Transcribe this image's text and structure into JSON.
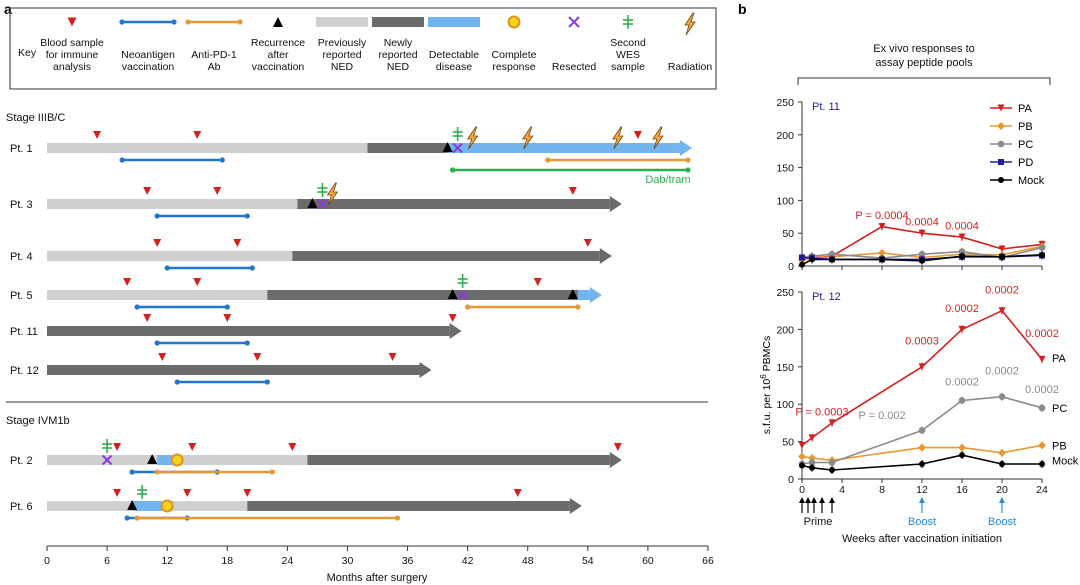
{
  "panel_a": {
    "label": "a",
    "key_title": "Key",
    "key_items": [
      {
        "name": "blood",
        "label": [
          "Blood sample",
          "for immune",
          "analysis"
        ]
      },
      {
        "name": "vaccine",
        "label": [
          "Neoantigen",
          "vaccination"
        ]
      },
      {
        "name": "antipd1",
        "label": [
          "Anti-PD-1",
          "Ab"
        ]
      },
      {
        "name": "recurrence",
        "label": [
          "Recurrence",
          "after",
          "vaccination"
        ]
      },
      {
        "name": "prev_ned",
        "label": [
          "Previously",
          "reported",
          "NED"
        ]
      },
      {
        "name": "new_ned",
        "label": [
          "Newly",
          "reported",
          "NED"
        ]
      },
      {
        "name": "disease",
        "label": [
          "Detectable",
          "disease"
        ]
      },
      {
        "name": "complete",
        "label": [
          "Complete",
          "response"
        ]
      },
      {
        "name": "resected",
        "label": [
          "Resected"
        ]
      },
      {
        "name": "wes",
        "label": [
          "Second",
          "WES",
          "sample"
        ]
      },
      {
        "name": "radiation",
        "label": [
          "Radiation"
        ]
      }
    ],
    "stage1_label": "Stage IIIB/C",
    "stage2_label": "Stage IVM1b",
    "dab_label": "Dab/tram",
    "xlabel": "Months after surgery",
    "x_ticks": [
      0,
      6,
      12,
      18,
      24,
      30,
      36,
      42,
      48,
      54,
      60,
      66
    ],
    "patients": [
      {
        "id": "Pt. 1",
        "segs": [
          [
            0,
            32,
            "light"
          ],
          [
            32,
            40,
            "dark"
          ],
          [
            40,
            64,
            "blue"
          ]
        ],
        "blood": [
          5,
          15,
          59
        ],
        "vac": [
          7.5,
          17.5
        ],
        "rec": [
          40
        ],
        "res": [
          41
        ],
        "wes": [
          41
        ],
        "rad": [
          42.5,
          48,
          57,
          61
        ],
        "pd1": [
          [
            50,
            64
          ]
        ],
        "dab": [
          40.5,
          64
        ]
      },
      {
        "id": "Pt. 3",
        "segs": [
          [
            0,
            25,
            "light"
          ],
          [
            25,
            57,
            "dark"
          ]
        ],
        "blood": [
          10,
          17,
          52.5
        ],
        "vac": [
          11,
          20
        ],
        "rec": [
          26.5
        ],
        "res": [
          27.5
        ],
        "wes": [
          27.5
        ],
        "rad": [
          28.5
        ]
      },
      {
        "id": "Pt. 4",
        "segs": [
          [
            0,
            24.5,
            "light"
          ],
          [
            24.5,
            56,
            "dark"
          ]
        ],
        "blood": [
          11,
          19,
          54
        ],
        "vac": [
          12,
          20.5
        ]
      },
      {
        "id": "Pt. 5",
        "segs": [
          [
            0,
            22,
            "light"
          ],
          [
            22,
            53,
            "dark"
          ],
          [
            53,
            55,
            "blue"
          ]
        ],
        "blood": [
          8,
          15,
          49
        ],
        "vac": [
          9,
          18
        ],
        "rec": [
          40.5,
          52.5
        ],
        "res": [
          41.5
        ],
        "wes": [
          41.5
        ],
        "pd1": [
          [
            42,
            53
          ]
        ]
      },
      {
        "id": "Pt. 11",
        "segs": [
          [
            0,
            41,
            "dark"
          ]
        ],
        "blood": [
          10,
          18,
          40.5
        ],
        "vac": [
          11,
          20
        ]
      },
      {
        "id": "Pt. 12",
        "segs": [
          [
            0,
            38,
            "dark"
          ]
        ],
        "blood": [
          11.5,
          21,
          34.5
        ],
        "vac": [
          13,
          22
        ]
      },
      {
        "id": "Pt. 2",
        "segs": [
          [
            0,
            11,
            "light"
          ],
          [
            11,
            13,
            "blue"
          ],
          [
            13,
            26,
            "light"
          ],
          [
            26,
            57,
            "dark"
          ]
        ],
        "blood": [
          7,
          14.5,
          24.5,
          57
        ],
        "vac": [
          8.5,
          17
        ],
        "rec": [
          10.5
        ],
        "res": [
          6
        ],
        "wes": [
          6
        ],
        "cr": [
          13
        ],
        "pd1": [
          [
            11,
            22.5
          ]
        ]
      },
      {
        "id": "Pt. 6",
        "segs": [
          [
            0,
            8.5,
            "light"
          ],
          [
            8.5,
            11.5,
            "blue"
          ],
          [
            11.5,
            20,
            "light"
          ],
          [
            20,
            53,
            "dark"
          ]
        ],
        "blood": [
          7,
          14,
          20,
          47
        ],
        "vac": [
          8,
          14
        ],
        "rec": [
          8.5
        ],
        "wes": [
          9.5
        ],
        "cr": [
          12
        ],
        "pd1": [
          [
            9,
            35
          ]
        ]
      }
    ]
  },
  "panel_b": {
    "label": "b",
    "header": [
      "Ex vivo responses to",
      "assay peptide pools"
    ],
    "ylabel": "s.f.u. per 10",
    "ylabel_sup": "6",
    "ylabel_tail": " PBMCs",
    "xlabel": "Weeks after vaccination initiation",
    "prime_label": "Prime",
    "boost_label": "Boost",
    "boost_weeks": [
      12,
      20
    ]
  },
  "chart_data": [
    {
      "type": "line",
      "title": "Pt. 11",
      "x": [
        0,
        1,
        3,
        8,
        12,
        16,
        20,
        24
      ],
      "xlabel": "Weeks after vaccination initiation",
      "ylabel": "s.f.u. per 10^6 PBMCs",
      "ylim": [
        0,
        250
      ],
      "yticks": [
        0,
        50,
        100,
        150,
        200,
        250
      ],
      "series": [
        {
          "name": "PA",
          "color": "#d32121",
          "values": [
            10,
            12,
            15,
            60,
            50,
            44,
            26,
            33
          ]
        },
        {
          "name": "PB",
          "color": "#e89833",
          "values": [
            9,
            12,
            14,
            20,
            13,
            18,
            17,
            30
          ]
        },
        {
          "name": "PC",
          "color": "#8a8a8a",
          "values": [
            13,
            15,
            18,
            12,
            18,
            22,
            13,
            28
          ]
        },
        {
          "name": "PD",
          "color": "#1f1f9a",
          "values": [
            13,
            12,
            10,
            10,
            10,
            14,
            14,
            16
          ]
        },
        {
          "name": "Mock",
          "color": "#000000",
          "values": [
            2,
            10,
            10,
            10,
            8,
            15,
            14,
            17
          ]
        }
      ],
      "annotations": [
        {
          "text": "P = 0.0004",
          "x": 8,
          "y": 72
        },
        {
          "text": "0.0004",
          "x": 12,
          "y": 62
        },
        {
          "text": "0.0004",
          "x": 16,
          "y": 56
        }
      ]
    },
    {
      "type": "line",
      "title": "Pt. 12",
      "x": [
        0,
        1,
        3,
        8,
        12,
        16,
        20,
        24
      ],
      "xlabel": "Weeks after vaccination initiation",
      "ylabel": "s.f.u. per 10^6 PBMCs",
      "ylim": [
        0,
        250
      ],
      "yticks": [
        0,
        50,
        100,
        150,
        200,
        250
      ],
      "series": [
        {
          "name": "PA",
          "color": "#d32121",
          "values": [
            45,
            55,
            75,
            null,
            150,
            200,
            225,
            160
          ]
        },
        {
          "name": "PB",
          "color": "#e89833",
          "values": [
            30,
            28,
            25,
            null,
            42,
            42,
            35,
            45
          ]
        },
        {
          "name": "PC",
          "color": "#8a8a8a",
          "values": [
            20,
            22,
            22,
            null,
            65,
            105,
            110,
            95
          ]
        },
        {
          "name": "Mock",
          "color": "#000000",
          "values": [
            18,
            15,
            12,
            null,
            20,
            32,
            20,
            20
          ]
        }
      ],
      "annotations": [
        {
          "text": "P = 0.0003",
          "x": 2,
          "y": 85,
          "color": "#d32121"
        },
        {
          "text": "0.0003",
          "x": 12,
          "y": 180,
          "color": "#d32121"
        },
        {
          "text": "0.0002",
          "x": 16,
          "y": 223,
          "color": "#d32121"
        },
        {
          "text": "0.0002",
          "x": 20,
          "y": 248,
          "color": "#d32121"
        },
        {
          "text": "0.0002",
          "x": 24,
          "y": 190,
          "color": "#d32121"
        },
        {
          "text": "P = 0.002",
          "x": 8,
          "y": 80,
          "color": "#8a8a8a"
        },
        {
          "text": "0.0002",
          "x": 16,
          "y": 125,
          "color": "#8a8a8a"
        },
        {
          "text": "0.0002",
          "x": 20,
          "y": 140,
          "color": "#8a8a8a"
        },
        {
          "text": "0.0002",
          "x": 24,
          "y": 115,
          "color": "#8a8a8a"
        }
      ],
      "end_labels": [
        "PA",
        "PC",
        "PB",
        "Mock"
      ]
    }
  ]
}
